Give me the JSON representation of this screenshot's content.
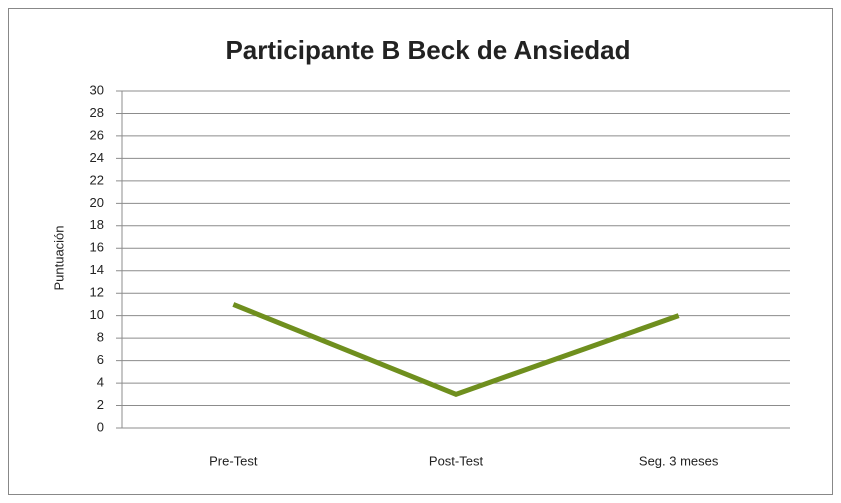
{
  "chart_data": {
    "type": "line",
    "title": "Participante B Beck de Ansiedad",
    "ylabel": "Puntuación",
    "categories": [
      "Pre-Test",
      "Post-Test",
      "Seg. 3 meses"
    ],
    "values": [
      11,
      3,
      10
    ],
    "color": "#6f8f1e",
    "ylim": [
      0,
      30
    ],
    "yticks": [
      0,
      2,
      4,
      6,
      8,
      10,
      12,
      14,
      16,
      18,
      20,
      22,
      24,
      26,
      28,
      30
    ],
    "grid": true
  }
}
